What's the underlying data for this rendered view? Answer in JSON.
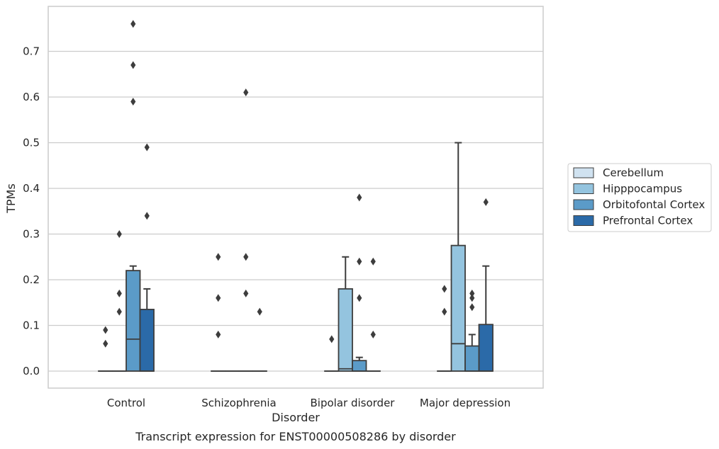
{
  "chart_data": {
    "type": "box",
    "title": "",
    "caption": "Transcript expression for ENST00000508286 by disorder",
    "xlabel": "Disorder",
    "ylabel": "TPMs",
    "ylim": [
      -0.037,
      0.79
    ],
    "yticks": [
      0.0,
      0.1,
      0.2,
      0.3,
      0.4,
      0.5,
      0.6,
      0.7
    ],
    "ytick_labels": [
      "0.0",
      "0.1",
      "0.2",
      "0.3",
      "0.4",
      "0.5",
      "0.6",
      "0.7"
    ],
    "grid": "horizontal",
    "legend_position": "right",
    "categories": [
      "Control",
      "Schizophrenia",
      "Bipolar disorder",
      "Major depression"
    ],
    "series": [
      {
        "name": "Cerebellum",
        "color": "#d0e2f0",
        "boxes": [
          {
            "q1": 0,
            "median": 0,
            "q3": 0,
            "whislo": 0,
            "whishi": 0,
            "fliers": [
              0.09,
              0.06
            ]
          },
          {
            "q1": 0,
            "median": 0,
            "q3": 0,
            "whislo": 0,
            "whishi": 0,
            "fliers": [
              0.25,
              0.16,
              0.08
            ]
          },
          {
            "q1": 0,
            "median": 0,
            "q3": 0,
            "whislo": 0,
            "whishi": 0,
            "fliers": [
              0.07
            ]
          },
          {
            "q1": 0,
            "median": 0,
            "q3": 0,
            "whislo": 0,
            "whishi": 0,
            "fliers": [
              0.18,
              0.13
            ]
          }
        ]
      },
      {
        "name": "Hipppocampus",
        "color": "#94c4df",
        "boxes": [
          {
            "q1": 0,
            "median": 0,
            "q3": 0,
            "whislo": 0,
            "whishi": 0,
            "fliers": [
              0.3,
              0.17,
              0.13
            ]
          },
          {
            "q1": 0,
            "median": 0,
            "q3": 0,
            "whislo": 0,
            "whishi": 0,
            "fliers": []
          },
          {
            "q1": 0,
            "median": 0.005,
            "q3": 0.18,
            "whislo": 0,
            "whishi": 0.25,
            "fliers": []
          },
          {
            "q1": 0,
            "median": 0.06,
            "q3": 0.275,
            "whislo": 0,
            "whishi": 0.5,
            "fliers": []
          }
        ]
      },
      {
        "name": "Orbitofontal Cortex",
        "color": "#5b9bc8",
        "boxes": [
          {
            "q1": 0,
            "median": 0.07,
            "q3": 0.22,
            "whislo": 0,
            "whishi": 0.23,
            "fliers": [
              0.76,
              0.67,
              0.59
            ]
          },
          {
            "q1": 0,
            "median": 0,
            "q3": 0,
            "whislo": 0,
            "whishi": 0,
            "fliers": [
              0.61,
              0.25,
              0.17
            ]
          },
          {
            "q1": 0,
            "median": 0,
            "q3": 0.023,
            "whislo": 0,
            "whishi": 0.03,
            "fliers": [
              0.38,
              0.24,
              0.16
            ]
          },
          {
            "q1": 0,
            "median": 0,
            "q3": 0.055,
            "whislo": 0,
            "whishi": 0.08,
            "fliers": [
              0.17,
              0.16,
              0.14
            ]
          }
        ]
      },
      {
        "name": "Prefrontal Cortex",
        "color": "#2b6aa8",
        "boxes": [
          {
            "q1": 0,
            "median": 0,
            "q3": 0.135,
            "whislo": 0,
            "whishi": 0.18,
            "fliers": [
              0.49,
              0.34
            ]
          },
          {
            "q1": 0,
            "median": 0,
            "q3": 0,
            "whislo": 0,
            "whishi": 0,
            "fliers": [
              0.13
            ]
          },
          {
            "q1": 0,
            "median": 0,
            "q3": 0,
            "whislo": 0,
            "whishi": 0,
            "fliers": [
              0.24,
              0.08
            ]
          },
          {
            "q1": 0,
            "median": 0,
            "q3": 0.102,
            "whislo": 0,
            "whishi": 0.23,
            "fliers": [
              0.37
            ]
          }
        ]
      }
    ]
  }
}
